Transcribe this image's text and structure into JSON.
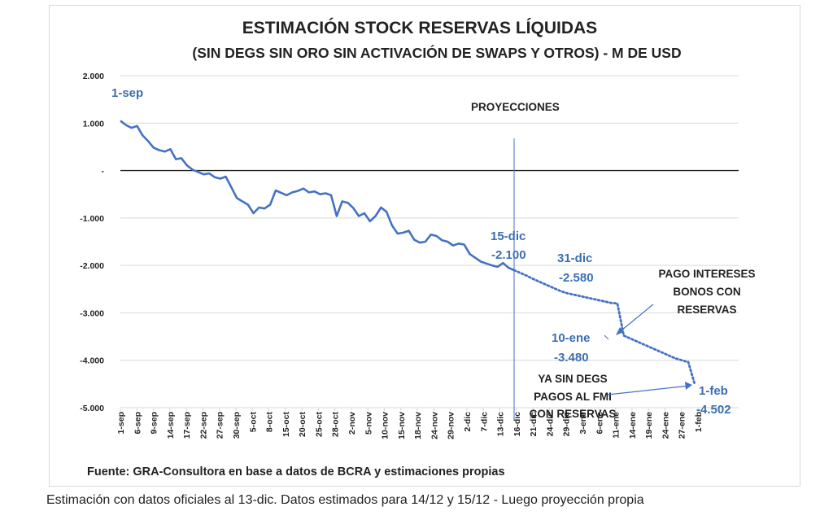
{
  "caption": "Estimación con datos oficiales al 13-dic. Datos estimados para 14/12 y 15/12 - Luego proyección propia",
  "colors": {
    "line": "#4472c4",
    "label": "#3b6fb0",
    "axis": "#222222",
    "grid": "#d9d9d9"
  },
  "chart_data": {
    "type": "line",
    "title": "ESTIMACIÓN STOCK RESERVAS LÍQUIDAS",
    "subtitle": "(SIN DEGS SIN ORO SIN ACTIVACIÓN DE SWAPS Y OTROS) - M DE USD",
    "source": "Fuente: GRA-Consultora en base a datos de BCRA y estimaciones propias",
    "ylim": [
      -5000,
      2000
    ],
    "yticks": [
      2000,
      1000,
      0,
      -1000,
      -2000,
      -3000,
      -4000,
      -5000
    ],
    "ytick_labels": [
      "2.000",
      "1.000",
      "-",
      "-1.000",
      "-2.000",
      "-3.000",
      "-4.000",
      "-5.000"
    ],
    "x_tick_labels": [
      "1-sep",
      "6-sep",
      "9-sep",
      "14-sep",
      "17-sep",
      "22-sep",
      "27-sep",
      "30-sep",
      "5-oct",
      "8-oct",
      "15-oct",
      "20-oct",
      "25-oct",
      "28-oct",
      "2-nov",
      "5-nov",
      "10-nov",
      "15-nov",
      "18-nov",
      "24-nov",
      "29-nov",
      "2-dic",
      "7-dic",
      "13-dic",
      "16-dic",
      "21-dic",
      "24-dic",
      "29-dic",
      "3-ene",
      "6-ene",
      "11-ene",
      "14-ene",
      "19-ene",
      "24-ene",
      "27-ene",
      "1-feb"
    ],
    "grid": true,
    "series": [
      {
        "style": "solid",
        "values": [
          1050,
          960,
          900,
          940,
          740,
          620,
          480,
          430,
          400,
          450,
          240,
          260,
          110,
          20,
          -30,
          -80,
          -60,
          -140,
          -170,
          -130,
          -350,
          -580,
          -650,
          -720,
          -900,
          -780,
          -800,
          -720,
          -420,
          -470,
          -520,
          -460,
          -430,
          -380,
          -460,
          -440,
          -500,
          -480,
          -520,
          -960,
          -650,
          -680,
          -790,
          -960,
          -900,
          -1070,
          -960,
          -780,
          -870,
          -1160,
          -1330,
          -1310,
          -1270,
          -1460,
          -1520,
          -1500,
          -1350,
          -1380,
          -1470,
          -1500,
          -1580,
          -1540,
          -1560,
          -1760,
          -1840,
          -1920,
          -1960,
          -2000,
          -2030,
          -1950,
          -2050,
          -2100
        ]
      },
      {
        "style": "dotted",
        "values": [
          -2100,
          -2160,
          -2220,
          -2290,
          -2350,
          -2410,
          -2470,
          -2530,
          -2580,
          -2610,
          -2640,
          -2670,
          -2700,
          -2730,
          -2760,
          -2790,
          -2800,
          -3480,
          -3540,
          -3600,
          -3660,
          -3720,
          -3780,
          -3840,
          -3900,
          -3960,
          -4000,
          -4040,
          -4502
        ]
      }
    ],
    "projection_marker": "PROYECCIONES",
    "annotations": {
      "start": "1-sep",
      "dic15_date": "15-dic",
      "dic15_value": "-2.100",
      "dic31_date": "31-dic",
      "dic31_value": "-2.580",
      "ene10_date": "10-ene",
      "ene10_value": "-3.480",
      "feb1_date": "1-feb",
      "feb1_value": "-4.502",
      "pago_line1": "PAGO INTERESES",
      "pago_line2": "BONOS CON",
      "pago_line3": "RESERVAS",
      "degs_line1": "YA SIN DEGS",
      "degs_line2": "PAGOS AL FMI",
      "degs_line3": "CON RESERVAS"
    }
  }
}
